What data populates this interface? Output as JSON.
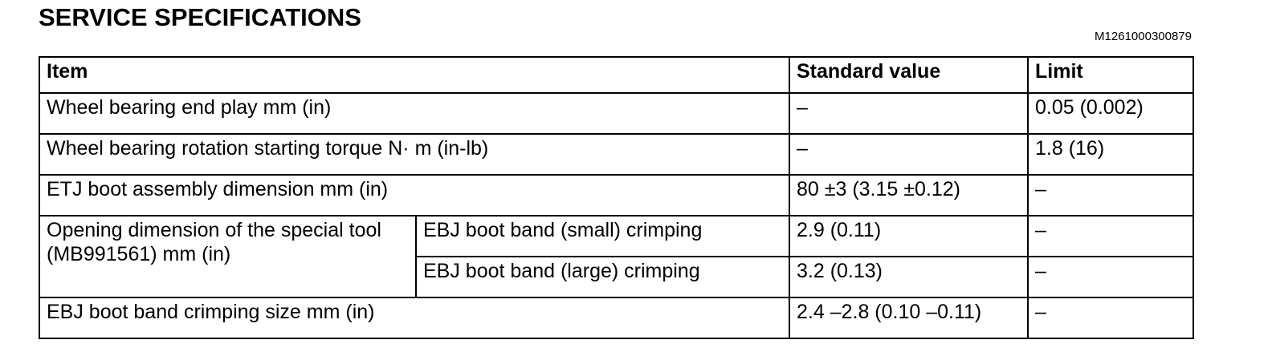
{
  "title": "SERVICE SPECIFICATIONS",
  "doc_id": "M1261000300879",
  "table": {
    "headers": {
      "item": "Item",
      "standard": "Standard value",
      "limit": "Limit"
    },
    "rows": [
      {
        "item": "Wheel bearing end play mm (in)",
        "standard": "–",
        "limit": "0.05 (0.002)"
      },
      {
        "item": "Wheel bearing rotation starting torque N· m (in-lb)",
        "standard": "–",
        "limit": "1.8 (16)"
      },
      {
        "item": "ETJ boot assembly dimension mm (in)",
        "standard": "80 ±3 (3.15 ±0.12)",
        "limit": "–"
      },
      {
        "item": "Opening dimension of the special tool (MB991561) mm (in)",
        "subitem": "EBJ boot band (small) crimping",
        "standard": "2.9 (0.11)",
        "limit": "–"
      },
      {
        "subitem": "EBJ boot band (large) crimping",
        "standard": "3.2 (0.13)",
        "limit": "–"
      },
      {
        "item": "EBJ boot band crimping size mm (in)",
        "standard": "2.4 –2.8 (0.10 –0.11)",
        "limit": "–"
      }
    ]
  }
}
